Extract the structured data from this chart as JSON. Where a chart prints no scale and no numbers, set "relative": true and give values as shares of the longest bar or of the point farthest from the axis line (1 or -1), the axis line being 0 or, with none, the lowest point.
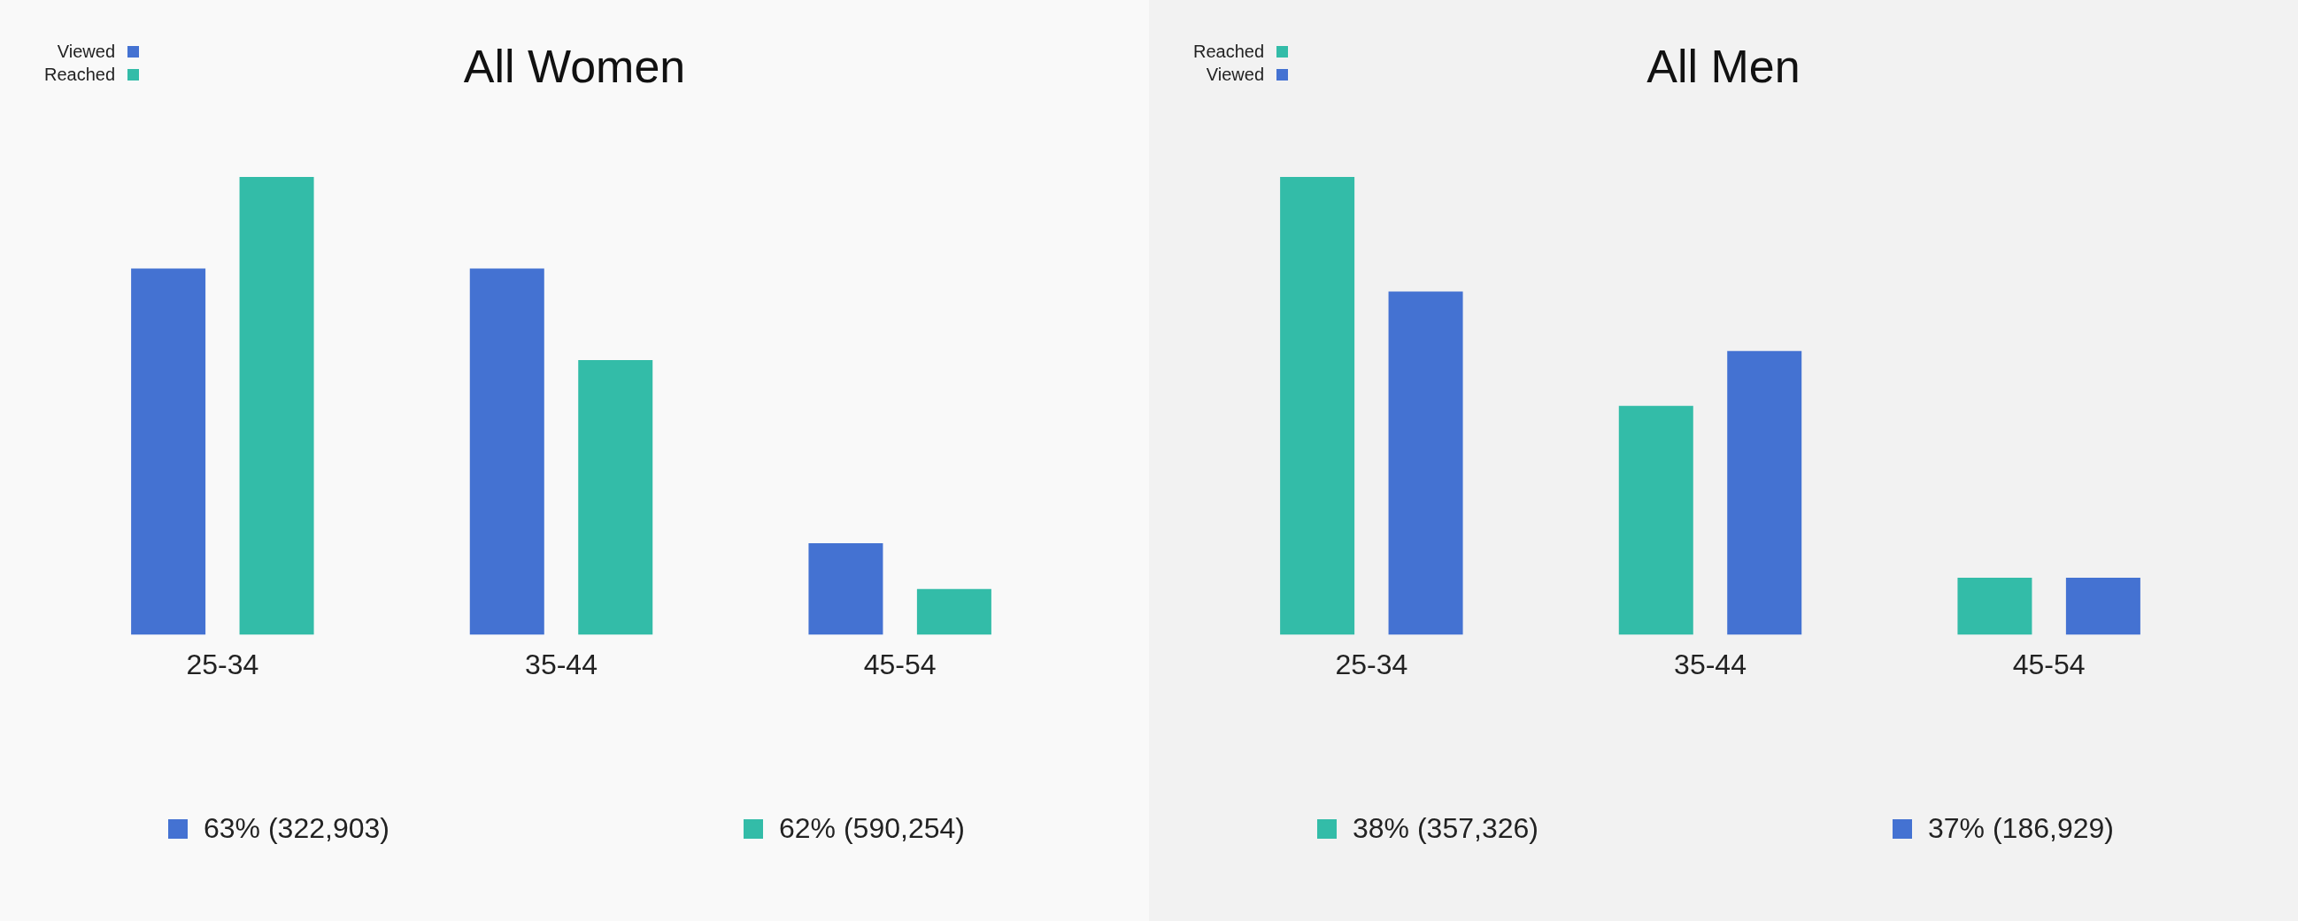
{
  "chart_data": [
    {
      "type": "bar",
      "title": "All Women",
      "categories": [
        "25-34",
        "35-44",
        "45-54"
      ],
      "relative": true,
      "legend": "top left",
      "series": [
        {
          "name": "Viewed",
          "color": "#4472d2",
          "values": [
            0.8,
            0.8,
            0.2
          ]
        },
        {
          "name": "Reached",
          "color": "#33bca8",
          "values": [
            1,
            0.6,
            0.1
          ]
        }
      ],
      "annotations": [
        "63% (322,903)",
        "62% (590,254)"
      ]
    },
    {
      "type": "bar",
      "title": "All Men",
      "categories": [
        "25-34",
        "35-44",
        "45-54"
      ],
      "relative": true,
      "legend": "top left",
      "series": [
        {
          "name": "Reached",
          "color": "#33bca8",
          "values": [
            1,
            0.5,
            0.125
          ]
        },
        {
          "name": "Viewed",
          "color": "#4472d2",
          "values": [
            0.75,
            0.62,
            0.125
          ]
        }
      ],
      "annotations": [
        "38% (357,326)",
        "37% (186,929)"
      ]
    }
  ]
}
